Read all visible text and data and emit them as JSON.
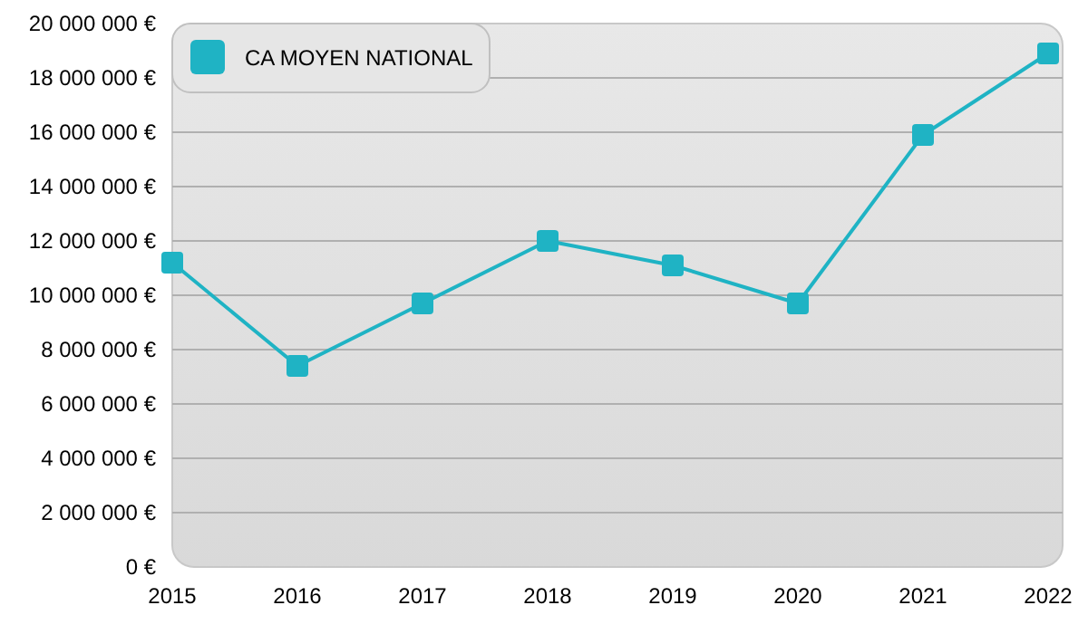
{
  "chart_data": {
    "type": "line",
    "categories": [
      "2015",
      "2016",
      "2017",
      "2018",
      "2019",
      "2020",
      "2021",
      "2022"
    ],
    "series": [
      {
        "name": "CA MOYEN NATIONAL",
        "color": "#1fb3c4",
        "values": [
          11200000,
          7400000,
          9700000,
          12000000,
          11100000,
          9700000,
          15900000,
          18900000
        ]
      }
    ],
    "ylim": [
      0,
      20000000
    ],
    "yticks": [
      {
        "value": 0,
        "label": "0 €"
      },
      {
        "value": 2000000,
        "label": "2 000 000 €"
      },
      {
        "value": 4000000,
        "label": "4 000 000 €"
      },
      {
        "value": 6000000,
        "label": "6 000 000 €"
      },
      {
        "value": 8000000,
        "label": "8 000 000 €"
      },
      {
        "value": 10000000,
        "label": "10 000 000 €"
      },
      {
        "value": 12000000,
        "label": "12 000 000 €"
      },
      {
        "value": 14000000,
        "label": "14 000 000 €"
      },
      {
        "value": 16000000,
        "label": "16 000 000 €"
      },
      {
        "value": 18000000,
        "label": "18 000 000 €"
      },
      {
        "value": 20000000,
        "label": "20 000 000 €"
      }
    ],
    "grid": "y",
    "legend": "top left",
    "marker": "square",
    "line_style": "solid"
  }
}
